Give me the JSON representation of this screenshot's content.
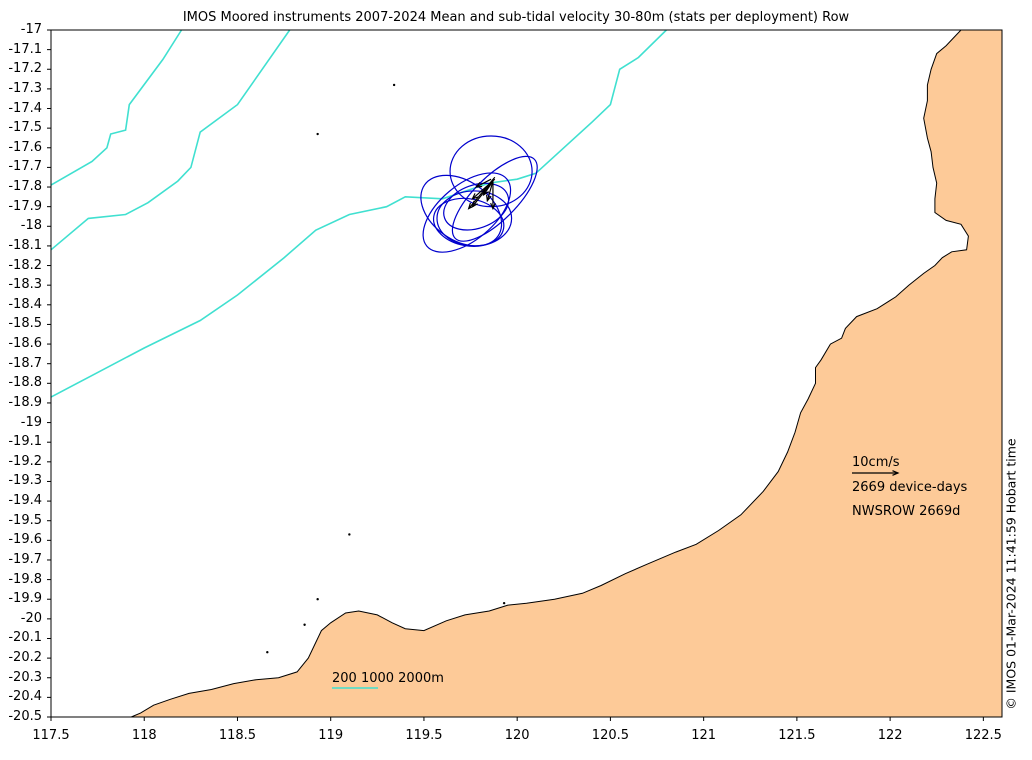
{
  "title": "IMOS Moored instruments 2007-2024 Mean and sub-tidal velocity 30-80m (stats per deployment) Row",
  "axes": {
    "xlim": [
      117.5,
      122.6
    ],
    "ylim": [
      -20.5,
      -17.0
    ],
    "x_ticks": [
      117.5,
      118,
      118.5,
      119,
      119.5,
      120,
      120.5,
      121,
      121.5,
      122,
      122.5
    ],
    "x_tick_labels": [
      "117.5",
      "118",
      "118.5",
      "119",
      "119.5",
      "120",
      "120.5",
      "121",
      "121.5",
      "122",
      "122.5"
    ],
    "y_ticks": [
      -17,
      -17.1,
      -17.2,
      -17.3,
      -17.4,
      -17.5,
      -17.6,
      -17.7,
      -17.8,
      -17.9,
      -18,
      -18.1,
      -18.2,
      -18.3,
      -18.4,
      -18.5,
      -18.6,
      -18.7,
      -18.8,
      -18.9,
      -19,
      -19.1,
      -19.2,
      -19.3,
      -19.4,
      -19.5,
      -19.6,
      -19.7,
      -19.8,
      -19.9,
      -20,
      -20.1,
      -20.2,
      -20.3,
      -20.4,
      -20.5
    ],
    "y_tick_labels": [
      "-17",
      "-17.1",
      "-17.2",
      "-17.3",
      "-17.4",
      "-17.5",
      "-17.6",
      "-17.7",
      "-17.8",
      "-17.9",
      "-18",
      "-18.1",
      "-18.2",
      "-18.3",
      "-18.4",
      "-18.5",
      "-18.6",
      "-18.7",
      "-18.8",
      "-18.9",
      "-19",
      "-19.1",
      "-19.2",
      "-19.3",
      "-19.4",
      "-19.5",
      "-19.6",
      "-19.7",
      "-19.8",
      "-19.9",
      "-20",
      "-20.1",
      "-20.2",
      "-20.3",
      "-20.4",
      "-20.5"
    ]
  },
  "colors": {
    "land": "#FDCA98",
    "isobath": "#40E0D0",
    "ellipse": "#0000CD",
    "arrow": "#000000",
    "coast": "#000000"
  },
  "land_outline": [
    [
      122.6,
      -17.0
    ],
    [
      122.38,
      -17.0
    ],
    [
      122.35,
      -17.03
    ],
    [
      122.3,
      -17.08
    ],
    [
      122.25,
      -17.12
    ],
    [
      122.22,
      -17.2
    ],
    [
      122.2,
      -17.28
    ],
    [
      122.2,
      -17.36
    ],
    [
      122.18,
      -17.45
    ],
    [
      122.2,
      -17.55
    ],
    [
      122.22,
      -17.62
    ],
    [
      122.23,
      -17.7
    ],
    [
      122.25,
      -17.78
    ],
    [
      122.24,
      -17.86
    ],
    [
      122.24,
      -17.93
    ],
    [
      122.3,
      -17.97
    ],
    [
      122.38,
      -17.99
    ],
    [
      122.42,
      -18.05
    ],
    [
      122.41,
      -18.12
    ],
    [
      122.33,
      -18.13
    ],
    [
      122.28,
      -18.16
    ],
    [
      122.24,
      -18.2
    ],
    [
      122.18,
      -18.24
    ],
    [
      122.1,
      -18.3
    ],
    [
      122.03,
      -18.36
    ],
    [
      121.93,
      -18.42
    ],
    [
      121.82,
      -18.46
    ],
    [
      121.76,
      -18.52
    ],
    [
      121.74,
      -18.57
    ],
    [
      121.68,
      -18.6
    ],
    [
      121.63,
      -18.68
    ],
    [
      121.6,
      -18.72
    ],
    [
      121.6,
      -18.8
    ],
    [
      121.56,
      -18.88
    ],
    [
      121.52,
      -18.95
    ],
    [
      121.49,
      -19.05
    ],
    [
      121.45,
      -19.15
    ],
    [
      121.4,
      -19.25
    ],
    [
      121.32,
      -19.35
    ],
    [
      121.2,
      -19.47
    ],
    [
      121.08,
      -19.55
    ],
    [
      120.96,
      -19.62
    ],
    [
      120.85,
      -19.66
    ],
    [
      120.7,
      -19.72
    ],
    [
      120.58,
      -19.77
    ],
    [
      120.45,
      -19.83
    ],
    [
      120.35,
      -19.87
    ],
    [
      120.2,
      -19.9
    ],
    [
      120.05,
      -19.92
    ],
    [
      119.95,
      -19.93
    ],
    [
      119.85,
      -19.96
    ],
    [
      119.72,
      -19.98
    ],
    [
      119.62,
      -20.01
    ],
    [
      119.5,
      -20.06
    ],
    [
      119.4,
      -20.05
    ],
    [
      119.33,
      -20.02
    ],
    [
      119.25,
      -19.98
    ],
    [
      119.15,
      -19.96
    ],
    [
      119.08,
      -19.97
    ],
    [
      119.0,
      -20.02
    ],
    [
      118.95,
      -20.06
    ],
    [
      118.92,
      -20.12
    ],
    [
      118.88,
      -20.2
    ],
    [
      118.82,
      -20.27
    ],
    [
      118.72,
      -20.3
    ],
    [
      118.6,
      -20.31
    ],
    [
      118.48,
      -20.33
    ],
    [
      118.36,
      -20.36
    ],
    [
      118.24,
      -20.38
    ],
    [
      118.14,
      -20.41
    ],
    [
      118.05,
      -20.44
    ],
    [
      117.98,
      -20.48
    ],
    [
      117.93,
      -20.5
    ],
    [
      122.6,
      -20.5
    ]
  ],
  "isobaths": [
    {
      "label": "200",
      "points": [
        [
          117.5,
          -17.79
        ],
        [
          117.72,
          -17.67
        ],
        [
          117.8,
          -17.6
        ],
        [
          117.82,
          -17.53
        ],
        [
          117.9,
          -17.51
        ],
        [
          117.92,
          -17.38
        ],
        [
          118.1,
          -17.15
        ],
        [
          118.2,
          -17.0
        ]
      ]
    },
    {
      "label": "1000",
      "points": [
        [
          117.5,
          -18.12
        ],
        [
          117.7,
          -17.96
        ],
        [
          117.9,
          -17.94
        ],
        [
          118.02,
          -17.88
        ],
        [
          118.18,
          -17.77
        ],
        [
          118.25,
          -17.7
        ],
        [
          118.3,
          -17.52
        ],
        [
          118.5,
          -17.38
        ],
        [
          118.78,
          -17.0
        ]
      ]
    },
    {
      "label": "2000",
      "points": [
        [
          117.5,
          -18.87
        ],
        [
          117.7,
          -18.77
        ],
        [
          118.0,
          -18.62
        ],
        [
          118.3,
          -18.48
        ],
        [
          118.5,
          -18.35
        ],
        [
          118.75,
          -18.16
        ],
        [
          118.92,
          -18.02
        ],
        [
          119.1,
          -17.94
        ],
        [
          119.3,
          -17.9
        ],
        [
          119.4,
          -17.85
        ],
        [
          119.6,
          -17.86
        ],
        [
          119.85,
          -17.78
        ],
        [
          120.0,
          -17.76
        ],
        [
          120.1,
          -17.73
        ],
        [
          120.25,
          -17.6
        ],
        [
          120.4,
          -17.47
        ],
        [
          120.5,
          -17.38
        ],
        [
          120.55,
          -17.2
        ],
        [
          120.65,
          -17.14
        ],
        [
          120.8,
          -17.0
        ]
      ]
    }
  ],
  "ellipses": [
    {
      "cx": 119.86,
      "cy": -17.72,
      "rx": 0.22,
      "ry": 0.18,
      "angle": 0
    },
    {
      "cx": 119.73,
      "cy": -17.93,
      "rx": 0.28,
      "ry": 0.14,
      "angle": 40
    },
    {
      "cx": 119.7,
      "cy": -17.92,
      "rx": 0.24,
      "ry": 0.15,
      "angle": -35
    },
    {
      "cx": 119.77,
      "cy": -17.96,
      "rx": 0.2,
      "ry": 0.14,
      "angle": 0
    },
    {
      "cx": 119.78,
      "cy": -17.9,
      "rx": 0.18,
      "ry": 0.11,
      "angle": 20
    },
    {
      "cx": 119.88,
      "cy": -17.86,
      "rx": 0.3,
      "ry": 0.11,
      "angle": 45
    },
    {
      "cx": 119.74,
      "cy": -17.98,
      "rx": 0.19,
      "ry": 0.12,
      "angle": -10
    }
  ],
  "arrows": [
    {
      "x": 119.88,
      "y": -17.75,
      "dx": -0.14,
      "dy": -0.16
    },
    {
      "x": 119.88,
      "y": -17.76,
      "dx": -0.12,
      "dy": -0.1
    },
    {
      "x": 119.86,
      "y": -17.78,
      "dx": -0.1,
      "dy": -0.12
    },
    {
      "x": 119.87,
      "y": -17.77,
      "dx": -0.03,
      "dy": -0.1
    },
    {
      "x": 119.87,
      "y": -17.77,
      "dx": 0.0,
      "dy": -0.14
    },
    {
      "x": 119.86,
      "y": -17.76,
      "dx": -0.08,
      "dy": -0.04
    },
    {
      "x": 119.87,
      "y": -17.77,
      "dx": -0.05,
      "dy": -0.07
    }
  ],
  "islands": [
    [
      119.34,
      -17.28
    ],
    [
      118.93,
      -17.53
    ],
    [
      119.1,
      -19.57
    ],
    [
      118.93,
      -19.9
    ],
    [
      118.86,
      -20.03
    ],
    [
      118.66,
      -20.17
    ],
    [
      119.93,
      -19.92
    ]
  ],
  "annotations": {
    "speed_scale_label": "10cm/s",
    "speed_scale_value": 10,
    "device_days": "2669 device-days",
    "station": "NWSROW 2669d",
    "isobath_legend": "200 1000 2000m",
    "credit": "© IMOS 01-Mar-2024 11:41:59 Hobart time"
  }
}
